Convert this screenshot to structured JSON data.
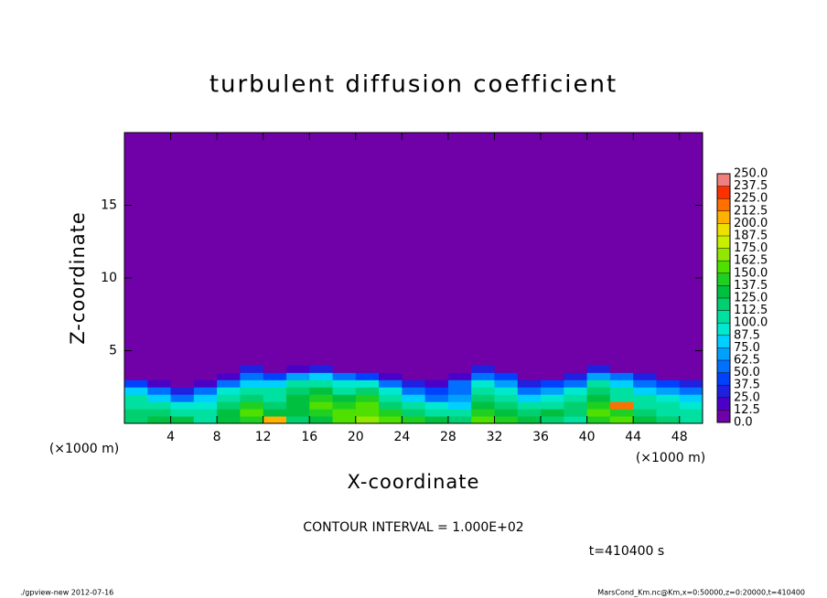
{
  "chart_data": {
    "type": "contour",
    "title": "turbulent diffusion coefficient",
    "xlabel": "X-coordinate",
    "ylabel": "Z-coordinate",
    "x_unit": "(×1000 m)",
    "annotation": "CONTOUR INTERVAL = 1.000E+02",
    "time_label": "t=410400 s",
    "footer_left": "./gpview-new  2012-07-16",
    "footer_right": "MarsCond_Km.nc@Km,x=0:50000,z=0:20000,t=410400",
    "xlim": [
      0,
      50
    ],
    "ylim": [
      0,
      20
    ],
    "xticks": [
      4,
      8,
      12,
      16,
      20,
      24,
      28,
      32,
      36,
      40,
      44,
      48
    ],
    "yticks": [
      5,
      10,
      15
    ],
    "x": [
      1,
      3,
      5,
      7,
      9,
      11,
      13,
      15,
      17,
      19,
      21,
      23,
      25,
      27,
      29,
      31,
      33,
      35,
      37,
      39,
      41,
      43,
      45,
      47,
      49
    ],
    "z": [
      0.25,
      0.75,
      1.25,
      1.75,
      2.25,
      2.75,
      3.25,
      3.75
    ],
    "values": [
      [
        120,
        125,
        130,
        110,
        125,
        140,
        200,
        120,
        135,
        160,
        170,
        150,
        140,
        130,
        120,
        150,
        140,
        130,
        120,
        110,
        140,
        160,
        130,
        120,
        110
      ],
      [
        115,
        120,
        110,
        100,
        130,
        150,
        130,
        125,
        140,
        150,
        160,
        140,
        120,
        110,
        100,
        140,
        130,
        120,
        130,
        120,
        150,
        140,
        120,
        110,
        100
      ],
      [
        110,
        100,
        90,
        95,
        120,
        140,
        120,
        130,
        150,
        140,
        150,
        120,
        100,
        90,
        80,
        130,
        120,
        100,
        110,
        120,
        140,
        220,
        110,
        100,
        90
      ],
      [
        100,
        80,
        60,
        80,
        110,
        120,
        110,
        130,
        140,
        130,
        140,
        110,
        80,
        60,
        70,
        120,
        110,
        80,
        90,
        100,
        130,
        110,
        100,
        90,
        80
      ],
      [
        80,
        50,
        30,
        60,
        90,
        100,
        100,
        120,
        130,
        110,
        120,
        90,
        60,
        40,
        60,
        110,
        90,
        60,
        70,
        90,
        120,
        100,
        80,
        70,
        60
      ],
      [
        40,
        20,
        0,
        20,
        60,
        80,
        80,
        100,
        110,
        90,
        90,
        60,
        30,
        20,
        50,
        90,
        70,
        30,
        40,
        60,
        100,
        80,
        60,
        40,
        30
      ],
      [
        0,
        0,
        0,
        0,
        20,
        60,
        40,
        70,
        80,
        50,
        40,
        20,
        0,
        0,
        20,
        60,
        40,
        0,
        0,
        30,
        70,
        50,
        30,
        10,
        0
      ],
      [
        0,
        0,
        0,
        0,
        0,
        30,
        0,
        20,
        30,
        10,
        0,
        0,
        0,
        0,
        0,
        30,
        10,
        0,
        0,
        0,
        30,
        10,
        0,
        0,
        0
      ]
    ],
    "background_color": "#7000a8",
    "levels": [
      {
        "value": 0,
        "label": "0.0"
      },
      {
        "value": 12.5,
        "label": "12.5"
      },
      {
        "value": 25,
        "label": "25.0"
      },
      {
        "value": 37.5,
        "label": "37.5"
      },
      {
        "value": 50,
        "label": "50.0"
      },
      {
        "value": 62.5,
        "label": "62.5"
      },
      {
        "value": 75,
        "label": "75.0"
      },
      {
        "value": 87.5,
        "label": "87.5"
      },
      {
        "value": 100,
        "label": "100.0"
      },
      {
        "value": 112.5,
        "label": "112.5"
      },
      {
        "value": 125,
        "label": "125.0"
      },
      {
        "value": 137.5,
        "label": "137.5"
      },
      {
        "value": 150,
        "label": "150.0"
      },
      {
        "value": 162.5,
        "label": "162.5"
      },
      {
        "value": 175,
        "label": "175.0"
      },
      {
        "value": 187.5,
        "label": "187.5"
      },
      {
        "value": 200,
        "label": "200.0"
      },
      {
        "value": 212.5,
        "label": "212.5"
      },
      {
        "value": 225,
        "label": "225.0"
      },
      {
        "value": 237.5,
        "label": "237.5"
      },
      {
        "value": 250,
        "label": "250.0"
      }
    ],
    "colors": [
      "#7000a8",
      "#4b00c8",
      "#2020e0",
      "#0040ff",
      "#0070ff",
      "#00a0ff",
      "#00d0ff",
      "#00e8d0",
      "#00e0a0",
      "#00d070",
      "#00c040",
      "#20d020",
      "#50e000",
      "#90e800",
      "#c8f000",
      "#f0e000",
      "#ffb000",
      "#ff7000",
      "#ff3000",
      "#f08080"
    ]
  }
}
